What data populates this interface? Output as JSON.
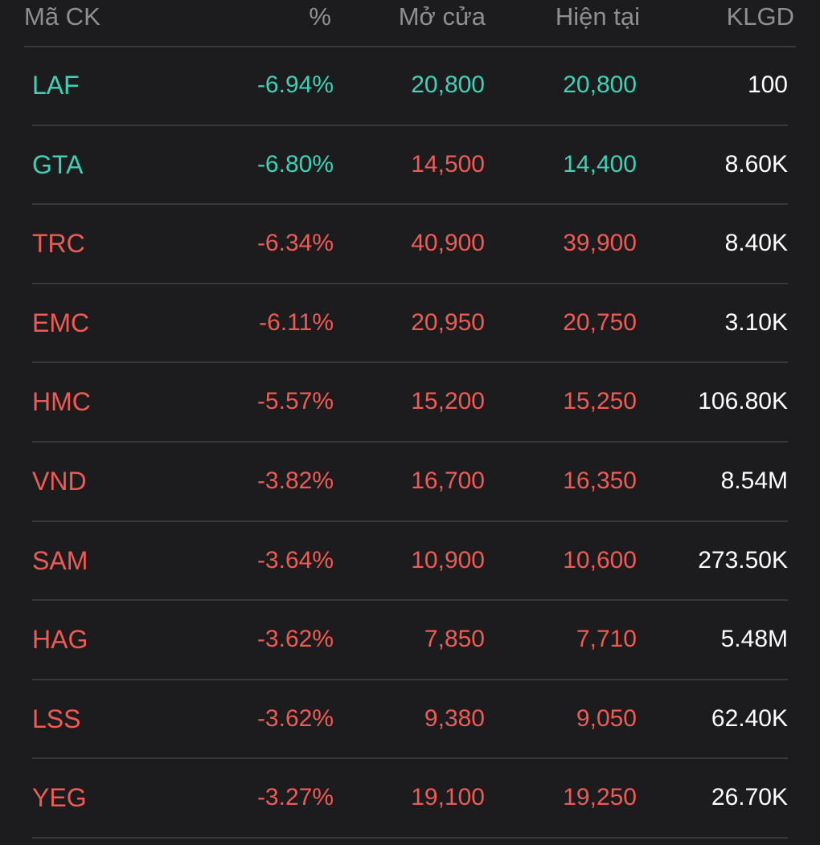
{
  "header": {
    "symbol": "Mã CK",
    "percent": "%",
    "open": "Mở cửa",
    "current": "Hiện tại",
    "volume": "KLGD"
  },
  "colors": {
    "background": "#1c1c1e",
    "header_text": "#8e8e93",
    "up": "#3fd1b5",
    "down": "#ef5b54",
    "volume_text": "#ffffff",
    "divider": "#38383b"
  },
  "rows": [
    {
      "symbol": "LAF",
      "percent": "-6.94%",
      "open": "20,800",
      "current": "20,800",
      "volume": "100",
      "colors": {
        "symbol": "green",
        "percent": "green",
        "open": "green",
        "current": "green"
      }
    },
    {
      "symbol": "GTA",
      "percent": "-6.80%",
      "open": "14,500",
      "current": "14,400",
      "volume": "8.60K",
      "colors": {
        "symbol": "green",
        "percent": "green",
        "open": "red",
        "current": "green"
      }
    },
    {
      "symbol": "TRC",
      "percent": "-6.34%",
      "open": "40,900",
      "current": "39,900",
      "volume": "8.40K",
      "colors": {
        "symbol": "red",
        "percent": "red",
        "open": "red",
        "current": "red"
      }
    },
    {
      "symbol": "EMC",
      "percent": "-6.11%",
      "open": "20,950",
      "current": "20,750",
      "volume": "3.10K",
      "colors": {
        "symbol": "red",
        "percent": "red",
        "open": "red",
        "current": "red"
      }
    },
    {
      "symbol": "HMC",
      "percent": "-5.57%",
      "open": "15,200",
      "current": "15,250",
      "volume": "106.80K",
      "colors": {
        "symbol": "red",
        "percent": "red",
        "open": "red",
        "current": "red"
      }
    },
    {
      "symbol": "VND",
      "percent": "-3.82%",
      "open": "16,700",
      "current": "16,350",
      "volume": "8.54M",
      "colors": {
        "symbol": "red",
        "percent": "red",
        "open": "red",
        "current": "red"
      }
    },
    {
      "symbol": "SAM",
      "percent": "-3.64%",
      "open": "10,900",
      "current": "10,600",
      "volume": "273.50K",
      "colors": {
        "symbol": "red",
        "percent": "red",
        "open": "red",
        "current": "red"
      }
    },
    {
      "symbol": "HAG",
      "percent": "-3.62%",
      "open": "7,850",
      "current": "7,710",
      "volume": "5.48M",
      "colors": {
        "symbol": "red",
        "percent": "red",
        "open": "red",
        "current": "red"
      }
    },
    {
      "symbol": "LSS",
      "percent": "-3.62%",
      "open": "9,380",
      "current": "9,050",
      "volume": "62.40K",
      "colors": {
        "symbol": "red",
        "percent": "red",
        "open": "red",
        "current": "red"
      }
    },
    {
      "symbol": "YEG",
      "percent": "-3.27%",
      "open": "19,100",
      "current": "19,250",
      "volume": "26.70K",
      "colors": {
        "symbol": "red",
        "percent": "red",
        "open": "red",
        "current": "red"
      }
    }
  ]
}
